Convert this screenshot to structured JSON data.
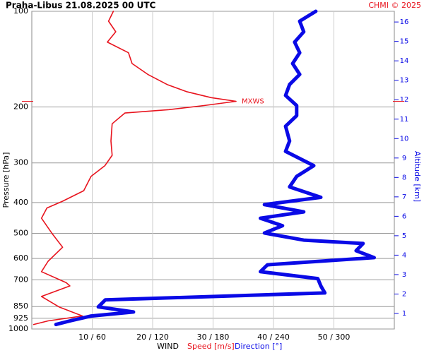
{
  "chart_data": {
    "type": "line",
    "title": "Praha-Libus    21.08.2025 00 UTC",
    "credit": "CHMI © 2025",
    "ylabel": "Pressure [hPa]",
    "y2label": "Altitude [km]",
    "xlabel": "WIND",
    "ylog": true,
    "grid": true,
    "ylim": [
      1000,
      100
    ],
    "yticks": [
      100,
      200,
      300,
      400,
      500,
      600,
      700,
      850,
      925,
      1000
    ],
    "y2lim": [
      0.2,
      16.55
    ],
    "y2ticks": [
      1,
      2,
      3,
      4,
      5,
      6,
      7,
      8,
      9,
      10,
      11,
      12,
      13,
      14,
      15,
      16
    ],
    "xlim": [
      0,
      60
    ],
    "x2lim": [
      0,
      360
    ],
    "xticks": [
      {
        "value": 10,
        "label": "10 / 60"
      },
      {
        "value": 20,
        "label": "20 / 120"
      },
      {
        "value": 30,
        "label": "30 / 180"
      },
      {
        "value": 40,
        "label": "40 / 240"
      },
      {
        "value": 50,
        "label": "50 / 300"
      }
    ],
    "annotation": "MXWS",
    "series": [
      {
        "name": "Speed [m/s]",
        "color": "#e8141e",
        "axis": "x",
        "pressure": [
          100,
          107.4,
          116,
          125,
          135,
          146,
          158,
          170,
          179,
          187,
          192,
          198,
          204,
          209,
          226,
          256,
          284,
          306,
          331,
          367,
          396,
          416,
          448,
          499,
          553,
          612,
          660,
          715,
          732,
          790,
          852,
          910,
          943,
          968
        ],
        "values": [
          13.5,
          12.7,
          13.9,
          12.5,
          16,
          16.6,
          19.2,
          22.4,
          25.6,
          29.7,
          33.8,
          28.5,
          22.7,
          15.4,
          13.3,
          13.1,
          13.3,
          12.1,
          9.8,
          8.6,
          5.1,
          2.5,
          1.6,
          3.3,
          5.1,
          2.7,
          1.6,
          5.7,
          6.3,
          1.6,
          4.5,
          8.4,
          2.7,
          0.3
        ]
      },
      {
        "name": "Direction [°]",
        "color": "#0a0ae6",
        "axis": "x2",
        "pressure": [
          100,
          107.4,
          116,
          125,
          135,
          146,
          158,
          170,
          184,
          198,
          213,
          230,
          256,
          276,
          306,
          331,
          357,
          385,
          406,
          428,
          448,
          473,
          499,
          525,
          538,
          567,
          596,
          628,
          660,
          694,
          732,
          770,
          810,
          852,
          884,
          910,
          943,
          968
        ],
        "values": [
          282,
          266,
          270,
          261,
          266,
          259,
          266,
          256,
          252,
          263,
          263,
          252,
          256,
          252,
          280,
          263,
          256,
          287,
          231,
          270,
          227,
          249,
          231,
          270,
          329,
          322,
          340,
          234,
          227,
          284,
          287,
          291,
          73,
          66,
          101,
          59,
          38,
          24
        ]
      }
    ]
  }
}
